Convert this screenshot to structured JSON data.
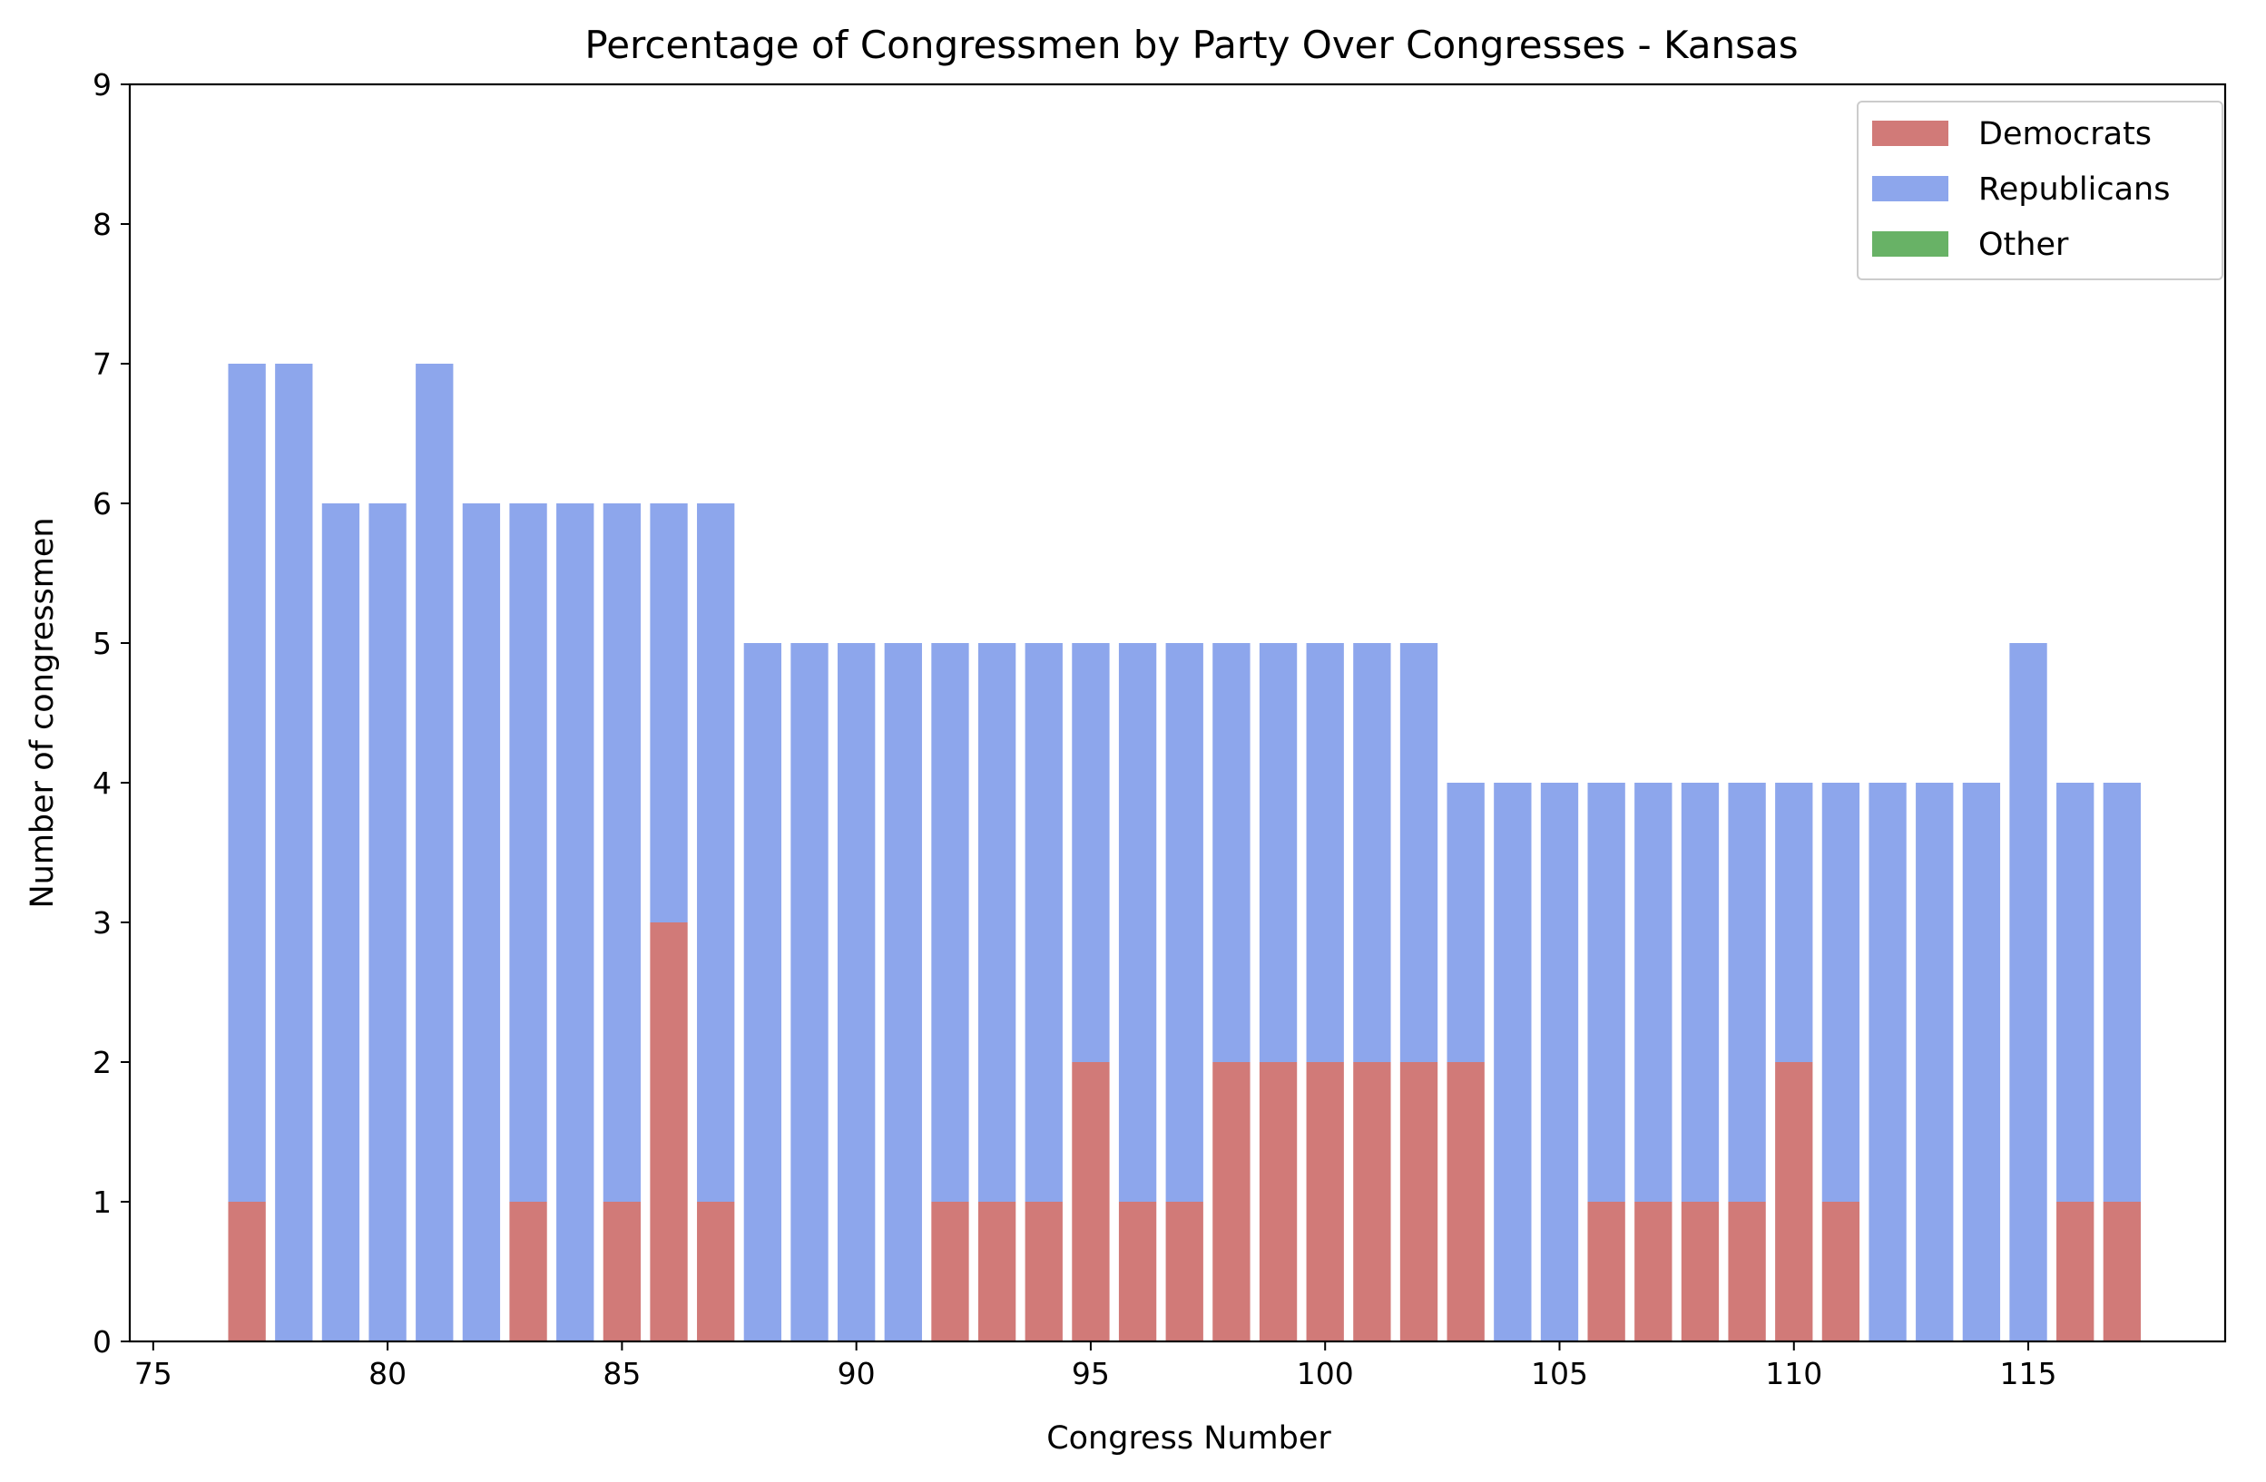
{
  "chart_data": {
    "type": "bar",
    "stacked": true,
    "title": "Percentage of Congressmen by Party Over Congresses - Kansas",
    "xlabel": "Congress Number",
    "ylabel": "Number of congressmen",
    "xlim": [
      74.5,
      119.2
    ],
    "ylim": [
      0,
      9
    ],
    "xticks": [
      75,
      80,
      85,
      90,
      95,
      100,
      105,
      110,
      115
    ],
    "yticks": [
      0,
      1,
      2,
      3,
      4,
      5,
      6,
      7,
      8,
      9
    ],
    "x": [
      77,
      78,
      79,
      80,
      81,
      82,
      83,
      84,
      85,
      86,
      87,
      88,
      89,
      90,
      91,
      92,
      93,
      94,
      95,
      96,
      97,
      98,
      99,
      100,
      101,
      102,
      103,
      104,
      105,
      106,
      107,
      108,
      109,
      110,
      111,
      112,
      113,
      114,
      115,
      116,
      117
    ],
    "series": [
      {
        "name": "Democrats",
        "color": "#d17a78",
        "values": [
          1,
          0,
          0,
          0,
          0,
          0,
          1,
          0,
          1,
          3,
          1,
          0,
          0,
          0,
          0,
          1,
          1,
          1,
          2,
          1,
          1,
          2,
          2,
          2,
          2,
          2,
          2,
          0,
          0,
          1,
          1,
          1,
          1,
          2,
          1,
          0,
          0,
          0,
          0,
          1,
          1
        ]
      },
      {
        "name": "Republicans",
        "color": "#8da6ec",
        "values": [
          6,
          7,
          6,
          6,
          7,
          6,
          5,
          6,
          5,
          3,
          5,
          5,
          5,
          5,
          5,
          4,
          4,
          4,
          3,
          4,
          4,
          3,
          3,
          3,
          3,
          3,
          2,
          4,
          4,
          3,
          3,
          3,
          3,
          2,
          3,
          4,
          4,
          4,
          5,
          3,
          3
        ]
      },
      {
        "name": "Other",
        "color": "#68b266",
        "values": [
          0,
          0,
          0,
          0,
          0,
          0,
          0,
          0,
          0,
          0,
          0,
          0,
          0,
          0,
          0,
          0,
          0,
          0,
          0,
          0,
          0,
          0,
          0,
          0,
          0,
          0,
          0,
          0,
          0,
          0,
          0,
          0,
          0,
          0,
          0,
          0,
          0,
          0,
          0,
          0,
          0
        ]
      }
    ],
    "legend_position": "top-right",
    "grid": false
  }
}
